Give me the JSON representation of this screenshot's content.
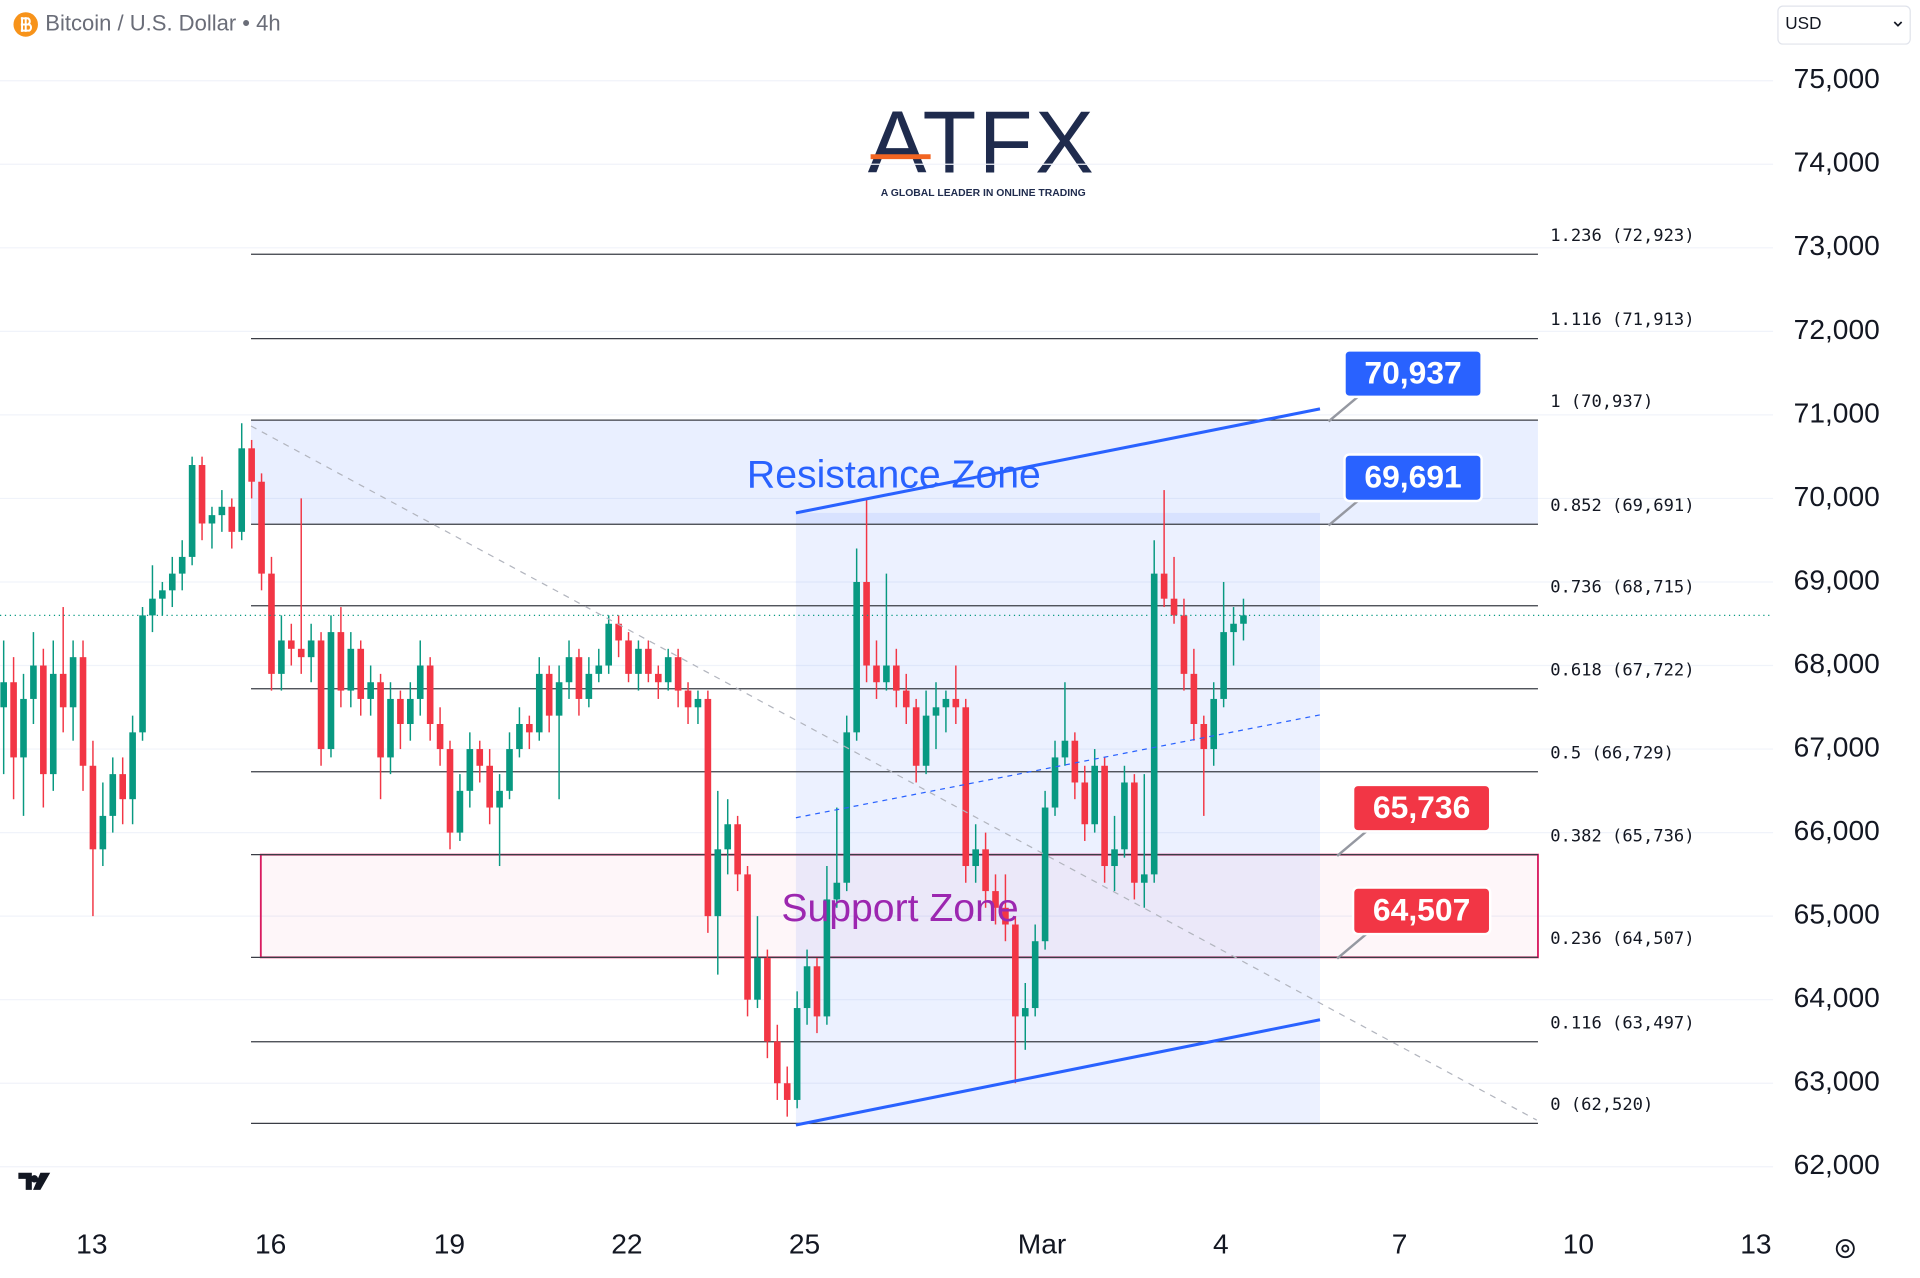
{
  "header": {
    "symbol": "Bitcoin / U.S. Dollar • 4h",
    "currency": "USD"
  },
  "logo": {
    "name": "ATFX",
    "tagline": "A GLOBAL LEADER IN ONLINE TRADING"
  },
  "chart_data": {
    "type": "candlestick",
    "up_color": "#089981",
    "down_color": "#f23645",
    "ylim": [
      61460,
      75380
    ],
    "yticks": [
      {
        "value": 62000,
        "label": "62,000"
      },
      {
        "value": 63000,
        "label": "63,000"
      },
      {
        "value": 64000,
        "label": "64,000"
      },
      {
        "value": 65000,
        "label": "65,000"
      },
      {
        "value": 66000,
        "label": "66,000"
      },
      {
        "value": 67000,
        "label": "67,000"
      },
      {
        "value": 68000,
        "label": "68,000"
      },
      {
        "value": 69000,
        "label": "69,000"
      },
      {
        "value": 70000,
        "label": "70,000"
      },
      {
        "value": 71000,
        "label": "71,000"
      },
      {
        "value": 72000,
        "label": "72,000"
      },
      {
        "value": 73000,
        "label": "73,000"
      },
      {
        "value": 74000,
        "label": "74,000"
      },
      {
        "value": 75000,
        "label": "75,000"
      }
    ],
    "grid": true,
    "x_labels": [
      "13",
      "16",
      "19",
      "22",
      "25",
      "Mar",
      "4",
      "7",
      "10",
      "13"
    ],
    "ohlc": [
      [
        67500,
        68300,
        66700,
        67800
      ],
      [
        67800,
        68100,
        66400,
        66900
      ],
      [
        66900,
        67900,
        66200,
        67600
      ],
      [
        67600,
        68400,
        67300,
        68000
      ],
      [
        68000,
        68200,
        66300,
        66700
      ],
      [
        66700,
        68300,
        66500,
        67900
      ],
      [
        67900,
        68700,
        67200,
        67500
      ],
      [
        67500,
        68300,
        67100,
        68100
      ],
      [
        68100,
        68300,
        66500,
        66800
      ],
      [
        66800,
        67100,
        65000,
        65800
      ],
      [
        65800,
        66600,
        65600,
        66200
      ],
      [
        66200,
        66900,
        66000,
        66700
      ],
      [
        66700,
        66900,
        66100,
        66400
      ],
      [
        66400,
        67400,
        66100,
        67200
      ],
      [
        67200,
        68700,
        67100,
        68600
      ],
      [
        68600,
        69200,
        68400,
        68800
      ],
      [
        68800,
        69000,
        68600,
        68900
      ],
      [
        68900,
        69300,
        68700,
        69100
      ],
      [
        69100,
        69500,
        68900,
        69300
      ],
      [
        69300,
        70500,
        69200,
        70400
      ],
      [
        70400,
        70500,
        69500,
        69700
      ],
      [
        69700,
        69900,
        69400,
        69800
      ],
      [
        69800,
        70100,
        69600,
        69900
      ],
      [
        69900,
        70000,
        69400,
        69600
      ],
      [
        69600,
        70900,
        69500,
        70600
      ],
      [
        70600,
        70700,
        70000,
        70200
      ],
      [
        70200,
        70300,
        68900,
        69100
      ],
      [
        69100,
        69300,
        67700,
        67900
      ],
      [
        67900,
        68600,
        67700,
        68300
      ],
      [
        68300,
        68500,
        68000,
        68200
      ],
      [
        68200,
        70000,
        67900,
        68100
      ],
      [
        68100,
        68500,
        67800,
        68300
      ],
      [
        68300,
        68400,
        66800,
        67000
      ],
      [
        67000,
        68600,
        66900,
        68400
      ],
      [
        68400,
        68700,
        67500,
        67700
      ],
      [
        67700,
        68400,
        67500,
        68200
      ],
      [
        68200,
        68300,
        67400,
        67600
      ],
      [
        67600,
        68000,
        67400,
        67800
      ],
      [
        67800,
        67900,
        66400,
        66900
      ],
      [
        66900,
        67800,
        66700,
        67600
      ],
      [
        67600,
        67700,
        67000,
        67300
      ],
      [
        67300,
        67800,
        67100,
        67600
      ],
      [
        67600,
        68300,
        67400,
        68000
      ],
      [
        68000,
        68100,
        67100,
        67300
      ],
      [
        67300,
        67500,
        66800,
        67000
      ],
      [
        67000,
        67100,
        65800,
        66000
      ],
      [
        66000,
        66700,
        65900,
        66500
      ],
      [
        66500,
        67200,
        66300,
        67000
      ],
      [
        67000,
        67100,
        66600,
        66800
      ],
      [
        66800,
        67000,
        66100,
        66300
      ],
      [
        66300,
        66700,
        65600,
        66500
      ],
      [
        66500,
        67200,
        66400,
        67000
      ],
      [
        67000,
        67500,
        66900,
        67300
      ],
      [
        67300,
        67400,
        67000,
        67200
      ],
      [
        67200,
        68100,
        67100,
        67900
      ],
      [
        67900,
        68000,
        67200,
        67400
      ],
      [
        67400,
        68000,
        66400,
        67800
      ],
      [
        67800,
        68300,
        67600,
        68100
      ],
      [
        68100,
        68200,
        67400,
        67600
      ],
      [
        67600,
        68100,
        67500,
        67900
      ],
      [
        67900,
        68200,
        67800,
        68000
      ],
      [
        68000,
        68600,
        67900,
        68500
      ],
      [
        68500,
        68600,
        68100,
        68300
      ],
      [
        68300,
        68400,
        67800,
        67900
      ],
      [
        67900,
        68300,
        67700,
        68200
      ],
      [
        68200,
        68300,
        67800,
        67900
      ],
      [
        67900,
        68000,
        67600,
        67800
      ],
      [
        67800,
        68200,
        67700,
        68100
      ],
      [
        68100,
        68200,
        67500,
        67700
      ],
      [
        67700,
        67800,
        67300,
        67500
      ],
      [
        67500,
        67700,
        67300,
        67600
      ],
      [
        67600,
        67700,
        64800,
        65000
      ],
      [
        65000,
        66500,
        64300,
        65800
      ],
      [
        65800,
        66400,
        65500,
        66100
      ],
      [
        66100,
        66200,
        65300,
        65500
      ],
      [
        65500,
        65600,
        63800,
        64000
      ],
      [
        64000,
        65000,
        63900,
        64500
      ],
      [
        64500,
        64600,
        63300,
        63500
      ],
      [
        63500,
        63700,
        62800,
        63000
      ],
      [
        63000,
        63200,
        62600,
        62800
      ],
      [
        62800,
        64100,
        62700,
        63900
      ],
      [
        63900,
        64600,
        63700,
        64400
      ],
      [
        64400,
        64500,
        63600,
        63800
      ],
      [
        63800,
        65600,
        63700,
        65200
      ],
      [
        65200,
        66300,
        65100,
        65400
      ],
      [
        65400,
        67400,
        65300,
        67200
      ],
      [
        67200,
        69400,
        67100,
        69000
      ],
      [
        69000,
        70000,
        67800,
        68000
      ],
      [
        68000,
        68300,
        67600,
        67800
      ],
      [
        67800,
        69100,
        67700,
        68000
      ],
      [
        68000,
        68200,
        67500,
        67700
      ],
      [
        67700,
        67900,
        67300,
        67500
      ],
      [
        67500,
        67600,
        66600,
        66800
      ],
      [
        66800,
        67700,
        66700,
        67400
      ],
      [
        67400,
        67800,
        67000,
        67500
      ],
      [
        67500,
        67700,
        67200,
        67600
      ],
      [
        67600,
        68000,
        67300,
        67500
      ],
      [
        67500,
        67600,
        65400,
        65600
      ],
      [
        65600,
        66100,
        65400,
        65800
      ],
      [
        65800,
        66000,
        65100,
        65300
      ],
      [
        65300,
        65500,
        64900,
        65100
      ],
      [
        65100,
        65500,
        64700,
        64900
      ],
      [
        64900,
        65000,
        63000,
        63800
      ],
      [
        63800,
        64200,
        63400,
        63900
      ],
      [
        63900,
        64900,
        63800,
        64700
      ],
      [
        64700,
        66500,
        64600,
        66300
      ],
      [
        66300,
        67100,
        66200,
        66900
      ],
      [
        66900,
        67800,
        66800,
        67100
      ],
      [
        67100,
        67200,
        66400,
        66600
      ],
      [
        66600,
        66800,
        65900,
        66100
      ],
      [
        66100,
        67000,
        66000,
        66800
      ],
      [
        66800,
        66900,
        65400,
        65600
      ],
      [
        65600,
        66200,
        65300,
        65800
      ],
      [
        65800,
        66800,
        65700,
        66600
      ],
      [
        66600,
        66700,
        65200,
        65400
      ],
      [
        65400,
        66700,
        65100,
        65500
      ],
      [
        65500,
        69500,
        65400,
        69100
      ],
      [
        69100,
        70100,
        68700,
        68800
      ],
      [
        68800,
        69300,
        68500,
        68600
      ],
      [
        68600,
        68800,
        67700,
        67900
      ],
      [
        67900,
        68200,
        67100,
        67300
      ],
      [
        67300,
        67400,
        66200,
        67000
      ],
      [
        67000,
        67800,
        66800,
        67600
      ],
      [
        67600,
        69000,
        67500,
        68400
      ],
      [
        68400,
        68700,
        68000,
        68500
      ],
      [
        68500,
        68800,
        68300,
        68600
      ]
    ],
    "fib_levels": [
      {
        "value": 72923,
        "label": "1.236 (72,923)"
      },
      {
        "value": 71913,
        "label": "1.116 (71,913)"
      },
      {
        "value": 70937,
        "label": "1 (70,937)"
      },
      {
        "value": 69691,
        "label": "0.852 (69,691)"
      },
      {
        "value": 68715,
        "label": "0.736 (68,715)"
      },
      {
        "value": 67722,
        "label": "0.618 (67,722)"
      },
      {
        "value": 66729,
        "label": "0.5 (66,729)"
      },
      {
        "value": 65736,
        "label": "0.382 (65,736)"
      },
      {
        "value": 64507,
        "label": "0.236 (64,507)"
      },
      {
        "value": 63497,
        "label": "0.116 (63,497)"
      },
      {
        "value": 62520,
        "label": "0 (62,520)"
      }
    ],
    "zones": [
      {
        "label": "Resistance Zone",
        "range": [
          69691,
          70937
        ],
        "color": "#2962ff"
      },
      {
        "label": "Support Zone",
        "range": [
          64507,
          65736
        ],
        "color": "#9c27b0"
      }
    ],
    "callouts": [
      {
        "value": 70937,
        "label": "70,937",
        "color": "#2962ff"
      },
      {
        "value": 69691,
        "label": "69,691",
        "color": "#2962ff"
      },
      {
        "value": 65736,
        "label": "65,736",
        "color": "#f23645"
      },
      {
        "value": 64507,
        "label": "64,507",
        "color": "#f23645"
      }
    ]
  }
}
